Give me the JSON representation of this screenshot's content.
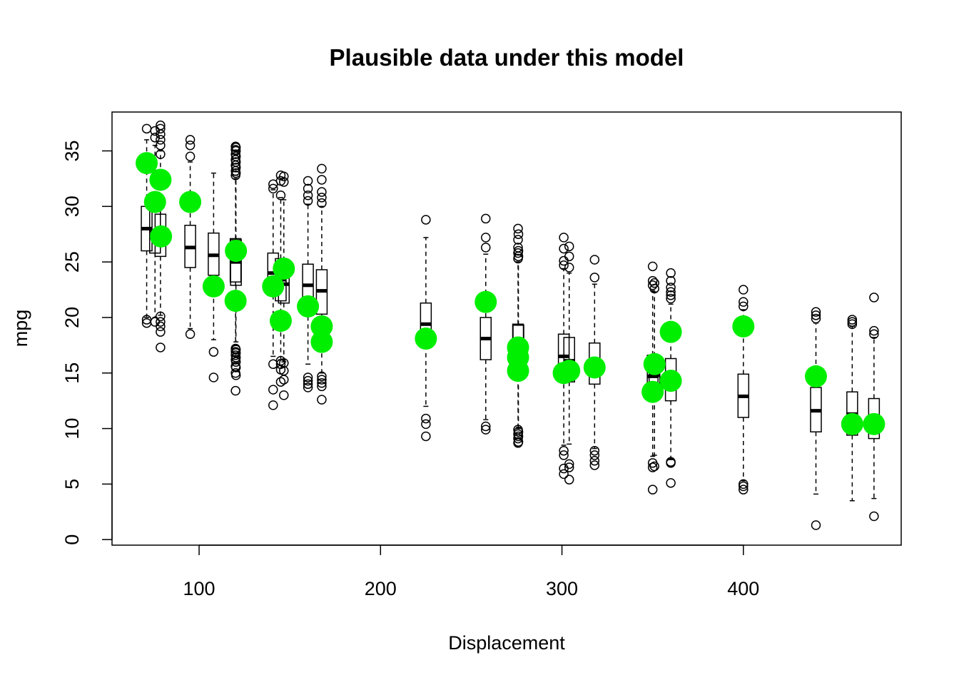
{
  "chart_data": {
    "type": "boxplot",
    "title": "Plausible data under this model",
    "xlabel": "Displacement",
    "ylabel": "mpg",
    "xlim": [
      52,
      487
    ],
    "ylim": [
      -0.5,
      38.5
    ],
    "xticks": [
      100,
      200,
      300,
      400
    ],
    "yticks": [
      0,
      5,
      10,
      15,
      20,
      25,
      30,
      35
    ],
    "colors": {
      "observed": "#00ee00",
      "box": "#000000"
    },
    "boxes": [
      {
        "x": 71.1,
        "q1": 26.0,
        "median": 28.0,
        "q3": 30.0,
        "whisker_low": 20.0,
        "whisker_high": 36.0,
        "outliers": [
          19.5,
          19.8,
          37.0
        ]
      },
      {
        "x": 75.7,
        "q1": 25.8,
        "median": 27.8,
        "q3": 29.6,
        "whisker_low": 20.0,
        "whisker_high": 35.5,
        "outliers": [
          19.6,
          36.2,
          36.8
        ]
      },
      {
        "x": 78.7,
        "q1": 25.5,
        "median": 27.8,
        "q3": 29.3,
        "whisker_low": 20.2,
        "whisker_high": 35.0,
        "outliers": [
          17.3,
          18.7,
          19.2,
          19.6,
          20.1,
          34.7,
          35.5,
          36.0,
          36.5,
          37.0,
          37.3
        ]
      },
      {
        "x": 95.1,
        "q1": 24.5,
        "median": 26.3,
        "q3": 28.3,
        "whisker_low": 19.0,
        "whisker_high": 34.0,
        "outliers": [
          18.5,
          34.5,
          35.5,
          36.0
        ]
      },
      {
        "x": 108.0,
        "q1": 23.8,
        "median": 25.6,
        "q3": 27.6,
        "whisker_low": 18.0,
        "whisker_high": 33.0,
        "outliers": [
          14.6,
          16.9
        ]
      },
      {
        "x": 120.1,
        "q1": 23.2,
        "median": 25.2,
        "q3": 27.1,
        "whisker_low": 17.5,
        "whisker_high": 32.8,
        "outliers": [
          13.4,
          15.0,
          15.6,
          16.2,
          16.6,
          16.9,
          17.2,
          32.8,
          33.2,
          33.7,
          34.2,
          34.7,
          35.1,
          35.4
        ]
      },
      {
        "x": 120.3,
        "q1": 22.9,
        "median": 25.0,
        "q3": 27.0,
        "whisker_low": 17.8,
        "whisker_high": 32.5,
        "outliers": [
          14.8,
          15.5,
          16.0,
          16.4,
          16.8,
          17.1,
          33.0,
          33.5,
          34.0,
          34.5,
          35.0,
          35.3
        ]
      },
      {
        "x": 140.8,
        "q1": 22.0,
        "median": 24.0,
        "q3": 25.8,
        "whisker_low": 16.5,
        "whisker_high": 31.5,
        "outliers": [
          12.1,
          13.5,
          15.8,
          31.6,
          32.0
        ]
      },
      {
        "x": 145.0,
        "q1": 21.5,
        "median": 23.4,
        "q3": 25.3,
        "whisker_low": 16.2,
        "whisker_high": 30.8,
        "outliers": [
          14.2,
          15.3,
          15.8,
          16.1,
          31.0,
          32.3,
          32.8
        ]
      },
      {
        "x": 146.7,
        "q1": 21.3,
        "median": 23.0,
        "q3": 25.1,
        "whisker_low": 16.0,
        "whisker_high": 30.6,
        "outliers": [
          13.0,
          14.4,
          15.2,
          15.9,
          32.2,
          32.7
        ]
      },
      {
        "x": 160.0,
        "q1": 20.8,
        "median": 22.9,
        "q3": 24.8,
        "whisker_low": 15.8,
        "whisker_high": 30.2,
        "outliers": [
          13.7,
          14.0,
          14.3,
          14.6,
          30.5,
          31.0,
          31.6,
          32.3
        ]
      },
      {
        "x": 167.6,
        "q1": 20.3,
        "median": 22.4,
        "q3": 24.3,
        "whisker_low": 15.0,
        "whisker_high": 30.0,
        "outliers": [
          12.6,
          13.8,
          14.1,
          14.4,
          14.7,
          30.3,
          30.8,
          31.3,
          32.4,
          33.4
        ]
      },
      {
        "x": 225.0,
        "q1": 17.5,
        "median": 19.4,
        "q3": 21.3,
        "whisker_low": 12.0,
        "whisker_high": 27.2,
        "outliers": [
          9.3,
          10.4,
          10.9,
          28.8
        ]
      },
      {
        "x": 258.0,
        "q1": 16.2,
        "median": 18.1,
        "q3": 20.0,
        "whisker_low": 10.8,
        "whisker_high": 25.7,
        "outliers": [
          9.9,
          10.2,
          26.3,
          27.2,
          28.9
        ]
      },
      {
        "x": 275.8,
        "q1": 15.4,
        "median": 17.4,
        "q3": 19.4,
        "whisker_low": 10.0,
        "whisker_high": 25.0,
        "outliers": [
          8.7,
          9.1,
          9.5,
          9.9,
          25.3,
          25.8,
          26.3,
          27.0,
          28.0
        ]
      },
      {
        "x": 276.0,
        "q1": 15.3,
        "median": 17.3,
        "q3": 19.3,
        "whisker_low": 10.1,
        "whisker_high": 25.0,
        "outliers": [
          8.8,
          9.3,
          9.7,
          25.5,
          26.0,
          27.5
        ]
      },
      {
        "x": 301.0,
        "q1": 14.7,
        "median": 16.5,
        "q3": 18.5,
        "whisker_low": 8.5,
        "whisker_high": 24.4,
        "outliers": [
          5.9,
          6.4,
          7.6,
          8.0,
          24.7,
          25.1,
          26.2,
          27.2
        ]
      },
      {
        "x": 304.0,
        "q1": 14.2,
        "median": 16.1,
        "q3": 18.2,
        "whisker_low": 8.6,
        "whisker_high": 24.0,
        "outliers": [
          5.4,
          6.5,
          6.8,
          24.5,
          25.5,
          26.4
        ]
      },
      {
        "x": 318.0,
        "q1": 14.0,
        "median": 15.8,
        "q3": 17.7,
        "whisker_low": 8.2,
        "whisker_high": 23.0,
        "outliers": [
          6.7,
          7.1,
          7.6,
          8.0,
          23.6,
          25.2
        ]
      },
      {
        "x": 350.0,
        "q1": 12.8,
        "median": 14.7,
        "q3": 16.6,
        "whisker_low": 7.5,
        "whisker_high": 22.4,
        "outliers": [
          4.5,
          6.5,
          6.9,
          22.9,
          23.3,
          24.6
        ]
      },
      {
        "x": 351.0,
        "q1": 12.8,
        "median": 14.8,
        "q3": 16.5,
        "whisker_low": 7.6,
        "whisker_high": 22.3,
        "outliers": [
          6.6,
          22.6,
          23.1
        ]
      },
      {
        "x": 360.0,
        "q1": 12.5,
        "median": 14.4,
        "q3": 16.3,
        "whisker_low": 7.2,
        "whisker_high": 21.2,
        "outliers": [
          5.1,
          6.9,
          7.0,
          21.7,
          22.0,
          22.3,
          22.7,
          23.3,
          24.0
        ]
      },
      {
        "x": 400.0,
        "q1": 11.0,
        "median": 12.9,
        "q3": 14.9,
        "whisker_low": 5.3,
        "whisker_high": 20.7,
        "outliers": [
          4.5,
          4.8,
          5.0,
          21.0,
          21.4,
          22.5
        ]
      },
      {
        "x": 440.0,
        "q1": 9.7,
        "median": 11.6,
        "q3": 13.7,
        "whisker_low": 4.1,
        "whisker_high": 19.5,
        "outliers": [
          1.3,
          19.9,
          20.2,
          20.5
        ]
      },
      {
        "x": 460.0,
        "q1": 9.4,
        "median": 11.3,
        "q3": 13.3,
        "whisker_low": 3.5,
        "whisker_high": 19.2,
        "outliers": [
          19.4,
          19.6,
          19.8
        ]
      },
      {
        "x": 472.0,
        "q1": 9.1,
        "median": 10.9,
        "q3": 12.7,
        "whisker_low": 3.7,
        "whisker_high": 18.2,
        "outliers": [
          2.1,
          18.5,
          18.8,
          21.8
        ]
      }
    ],
    "observed": [
      {
        "x": 71.1,
        "y": 33.9
      },
      {
        "x": 75.7,
        "y": 30.4
      },
      {
        "x": 78.7,
        "y": 32.4
      },
      {
        "x": 79.0,
        "y": 27.3
      },
      {
        "x": 95.1,
        "y": 30.4
      },
      {
        "x": 108.0,
        "y": 22.8
      },
      {
        "x": 120.1,
        "y": 21.5
      },
      {
        "x": 120.3,
        "y": 26.0
      },
      {
        "x": 140.8,
        "y": 22.8
      },
      {
        "x": 145.0,
        "y": 19.7
      },
      {
        "x": 146.7,
        "y": 24.4
      },
      {
        "x": 160.0,
        "y": 21.0
      },
      {
        "x": 167.6,
        "y": 19.2
      },
      {
        "x": 167.6,
        "y": 17.8
      },
      {
        "x": 225.0,
        "y": 18.1
      },
      {
        "x": 258.0,
        "y": 21.4
      },
      {
        "x": 275.8,
        "y": 16.4
      },
      {
        "x": 275.8,
        "y": 17.3
      },
      {
        "x": 275.8,
        "y": 15.2
      },
      {
        "x": 301.0,
        "y": 15.0
      },
      {
        "x": 304.0,
        "y": 15.2
      },
      {
        "x": 318.0,
        "y": 15.5
      },
      {
        "x": 350.0,
        "y": 13.3
      },
      {
        "x": 351.0,
        "y": 15.8
      },
      {
        "x": 360.0,
        "y": 18.7
      },
      {
        "x": 360.0,
        "y": 14.3
      },
      {
        "x": 400.0,
        "y": 19.2
      },
      {
        "x": 440.0,
        "y": 14.7
      },
      {
        "x": 460.0,
        "y": 10.4
      },
      {
        "x": 472.0,
        "y": 10.4
      }
    ]
  }
}
